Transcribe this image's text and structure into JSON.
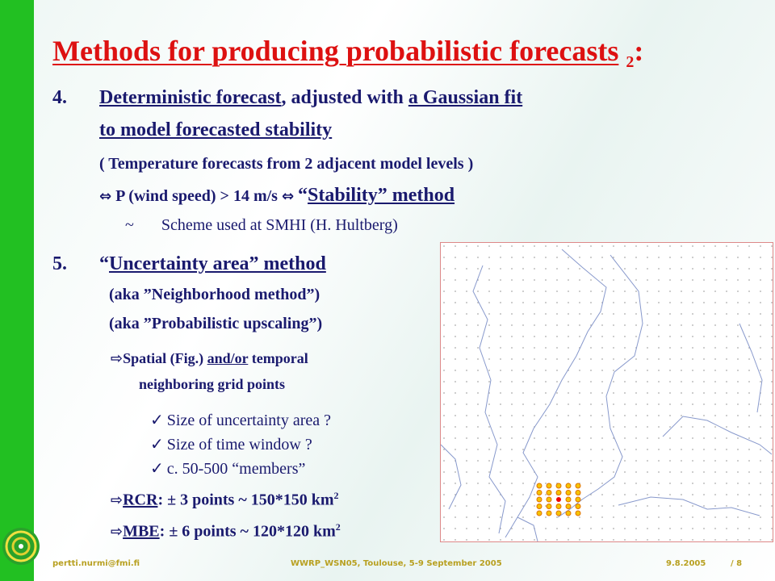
{
  "title": {
    "main": "Methods for producing probabilistic forecasts",
    "sub": "2",
    "colon": ":"
  },
  "item4": {
    "number": "4.",
    "part1": "Deterministic forecast",
    "part2": ", adjusted with ",
    "part3": "a Gaussian fit",
    "line2": "to model forecasted stability",
    "line3": "( Temperature forecasts from 2 adjacent model levels )",
    "line4_a": "P (wind speed) > 14 m/s",
    "line4_b": "“",
    "line4_c": "Stability” method",
    "scheme_tilde": "~",
    "scheme": "Scheme used at SMHI  (H. Hultberg)"
  },
  "item5": {
    "number": "5.",
    "quote_open": "“",
    "title": "Uncertainty area” method",
    "aka1": "(aka ”Neighborhood method”)",
    "aka2": "(aka ”Probabilistic upscaling”)",
    "spatial_a": "Spatial (Fig.) ",
    "spatial_b": "and/or",
    "spatial_c": " temporal",
    "spatial_line2": "neighboring grid points",
    "checks": [
      "Size of uncertainty area ?",
      "Size of time window ?",
      "c. 50-500 “members”"
    ],
    "rcr_a": "RCR",
    "rcr_b": ": ± 3 points ~ 150*150 km",
    "mbe_a": "MBE",
    "mbe_b": ": ± 6 points ~ 120*120 km",
    "sup": "2"
  },
  "footer": {
    "email": "pertti.nurmi@fmi.fi",
    "event": "WWRP_WSN05, Toulouse, 5-9 September 2005",
    "date": "9.8.2005",
    "page": "/ 8"
  },
  "icons": {
    "arrow": "double-arrow-icon",
    "hollow_arrow": "hollow-right-arrow-icon",
    "check": "checkmark-icon"
  },
  "colors": {
    "title": "#dd1111",
    "text": "#1a1a6e",
    "bar": "#22c022",
    "footer": "#b8a020",
    "dots_fill": "#f5c400",
    "dots_stroke": "#e07000",
    "center": "#ee0000"
  }
}
